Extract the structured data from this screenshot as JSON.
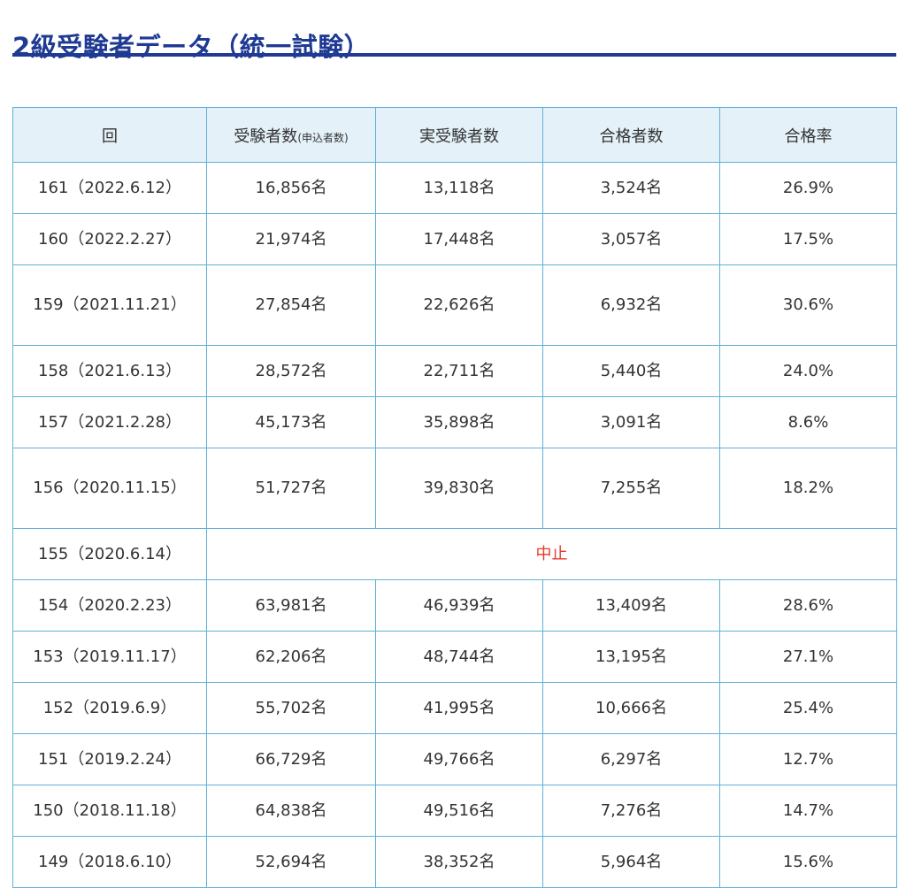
{
  "title": "2級受験者データ（統一試験）",
  "colors": {
    "title": "#1f3a93",
    "border": "#5fb1d9",
    "header_bg": "#e4f1f8",
    "cancel": "#e53b2c"
  },
  "headers": {
    "round": "回",
    "applicants": "受験者数",
    "applicants_note": "(申込者数)",
    "examinees": "実受験者数",
    "passers": "合格者数",
    "rate": "合格率"
  },
  "rows": [
    {
      "round": "161（2022.6.12）",
      "applicants": "16,856名",
      "examinees": "13,118名",
      "passers": "3,524名",
      "rate": "26.9%"
    },
    {
      "round": "160（2022.2.27）",
      "applicants": "21,974名",
      "examinees": "17,448名",
      "passers": "3,057名",
      "rate": "17.5%"
    },
    {
      "round": "159（2021.11.21）",
      "applicants": "27,854名",
      "examinees": "22,626名",
      "passers": "6,932名",
      "rate": "30.6%"
    },
    {
      "round": "158（2021.6.13）",
      "applicants": "28,572名",
      "examinees": "22,711名",
      "passers": "5,440名",
      "rate": "24.0%"
    },
    {
      "round": "157（2021.2.28）",
      "applicants": "45,173名",
      "examinees": "35,898名",
      "passers": "3,091名",
      "rate": "8.6%"
    },
    {
      "round": "156（2020.11.15）",
      "applicants": "51,727名",
      "examinees": "39,830名",
      "passers": "7,255名",
      "rate": "18.2%"
    },
    {
      "round": "155（2020.6.14）",
      "cancelled": "中止"
    },
    {
      "round": "154（2020.2.23）",
      "applicants": "63,981名",
      "examinees": "46,939名",
      "passers": "13,409名",
      "rate": "28.6%"
    },
    {
      "round": "153（2019.11.17）",
      "applicants": "62,206名",
      "examinees": "48,744名",
      "passers": "13,195名",
      "rate": "27.1%"
    },
    {
      "round": "152（2019.6.9）",
      "applicants": "55,702名",
      "examinees": "41,995名",
      "passers": "10,666名",
      "rate": "25.4%"
    },
    {
      "round": "151（2019.2.24）",
      "applicants": "66,729名",
      "examinees": "49,766名",
      "passers": "6,297名",
      "rate": "12.7%"
    },
    {
      "round": "150（2018.11.18）",
      "applicants": "64,838名",
      "examinees": "49,516名",
      "passers": "7,276名",
      "rate": "14.7%"
    },
    {
      "round": "149（2018.6.10）",
      "applicants": "52,694名",
      "examinees": "38,352名",
      "passers": "5,964名",
      "rate": "15.6%"
    }
  ]
}
